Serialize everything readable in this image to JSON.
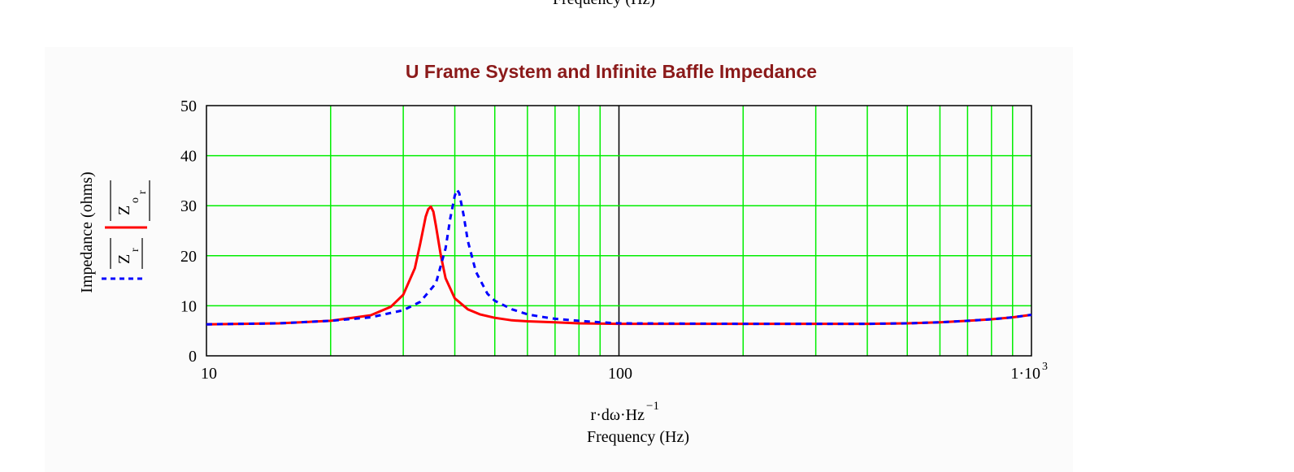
{
  "top_fragment": "Frequency (Hz)",
  "chart_data": {
    "type": "line",
    "title": "U Frame System and Infinite Baffle Impedance",
    "x_scale": "log",
    "xlim": [
      10,
      1000
    ],
    "ylim": [
      0,
      50
    ],
    "x_ticks": [
      10,
      100,
      1000
    ],
    "x_tick_labels": [
      "10",
      "100",
      "1·10",
      "3"
    ],
    "y_ticks": [
      0,
      10,
      20,
      30,
      40,
      50
    ],
    "y_tick_labels": [
      "0",
      "10",
      "20",
      "30",
      "40",
      "50"
    ],
    "xlabel_expr": [
      "r·dω·Hz",
      "−1"
    ],
    "xlabel": "Frequency (Hz)",
    "ylabel": "Impedance (ohms)",
    "legend_labels": [
      "Z",
      "o",
      "r",
      "Z",
      "r"
    ],
    "grid": true,
    "colors": {
      "grid": "#00ee00",
      "decade_line": "#000000",
      "series_1": "#ff0000",
      "series_2": "#0000ff",
      "title": "#8b1a1a"
    },
    "series": [
      {
        "style": "solid",
        "x": [
          10,
          15,
          20,
          25,
          28,
          30,
          32,
          33,
          34,
          34.5,
          35,
          35.5,
          36,
          37,
          38,
          40,
          43,
          46,
          50,
          55,
          60,
          70,
          80,
          100,
          200,
          300,
          400,
          500,
          600,
          700,
          800,
          900,
          1000
        ],
        "y": [
          6.3,
          6.5,
          7.0,
          8.1,
          9.8,
          12.2,
          17.5,
          22.5,
          27.8,
          29.3,
          29.8,
          28.8,
          26.0,
          20.0,
          15.5,
          11.5,
          9.3,
          8.3,
          7.6,
          7.1,
          6.9,
          6.7,
          6.5,
          6.4,
          6.4,
          6.4,
          6.4,
          6.5,
          6.7,
          7.0,
          7.3,
          7.7,
          8.2
        ]
      },
      {
        "style": "dashed",
        "x": [
          10,
          15,
          20,
          25,
          30,
          33,
          36,
          38,
          39,
          40,
          40.5,
          41,
          42,
          43,
          45,
          48,
          50,
          55,
          60,
          65,
          70,
          80,
          90,
          100,
          200,
          300,
          400,
          500,
          600,
          700,
          800,
          900,
          1000
        ],
        "y": [
          6.3,
          6.5,
          7.0,
          7.7,
          9.1,
          10.8,
          14.5,
          21.5,
          27.5,
          32.0,
          33.2,
          32.5,
          28.2,
          23.0,
          16.8,
          12.4,
          11.0,
          9.3,
          8.3,
          7.8,
          7.4,
          7.0,
          6.7,
          6.5,
          6.4,
          6.4,
          6.4,
          6.5,
          6.7,
          7.0,
          7.3,
          7.7,
          8.2
        ]
      }
    ]
  }
}
